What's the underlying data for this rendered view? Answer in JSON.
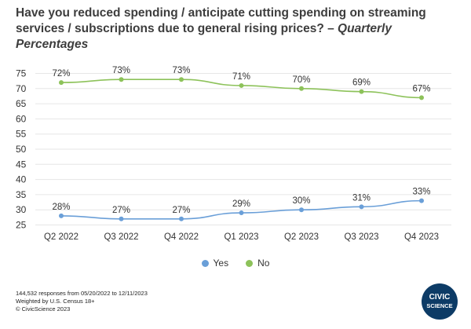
{
  "header": {
    "title": "Have you reduced spending / anticipate cutting spending on streaming services / subscriptions due to general rising prices? –",
    "subtitle": "Quarterly Percentages"
  },
  "legend": [
    {
      "label": "Yes",
      "color": "#6a9fd8"
    },
    {
      "label": "No",
      "color": "#8dc25a"
    }
  ],
  "footnote": {
    "line1": "144,532 responses from 05/20/2022 to 12/11/2023",
    "line2": "Weighted by U.S. Census 18+",
    "line3": "© CivicScience 2023"
  },
  "logo": {
    "line1": "CIVIC",
    "line2": "SCIENCE"
  },
  "chart_data": {
    "type": "line",
    "categories": [
      "Q2 2022",
      "Q3 2022",
      "Q4 2022",
      "Q1 2023",
      "Q2 2023",
      "Q3 2023",
      "Q4 2023"
    ],
    "series": [
      {
        "name": "Yes",
        "color": "#6a9fd8",
        "values": [
          28,
          27,
          27,
          29,
          30,
          31,
          33
        ],
        "labels": [
          "28%",
          "27%",
          "27%",
          "29%",
          "30%",
          "31%",
          "33%"
        ]
      },
      {
        "name": "No",
        "color": "#8dc25a",
        "values": [
          72,
          73,
          73,
          71,
          70,
          69,
          67
        ],
        "labels": [
          "72%",
          "73%",
          "73%",
          "71%",
          "70%",
          "69%",
          "67%"
        ]
      }
    ],
    "yticks": [
      25,
      30,
      35,
      40,
      45,
      50,
      55,
      60,
      65,
      70,
      75
    ],
    "ylim": [
      25,
      75
    ],
    "grid": true,
    "legend_position": "bottom"
  }
}
